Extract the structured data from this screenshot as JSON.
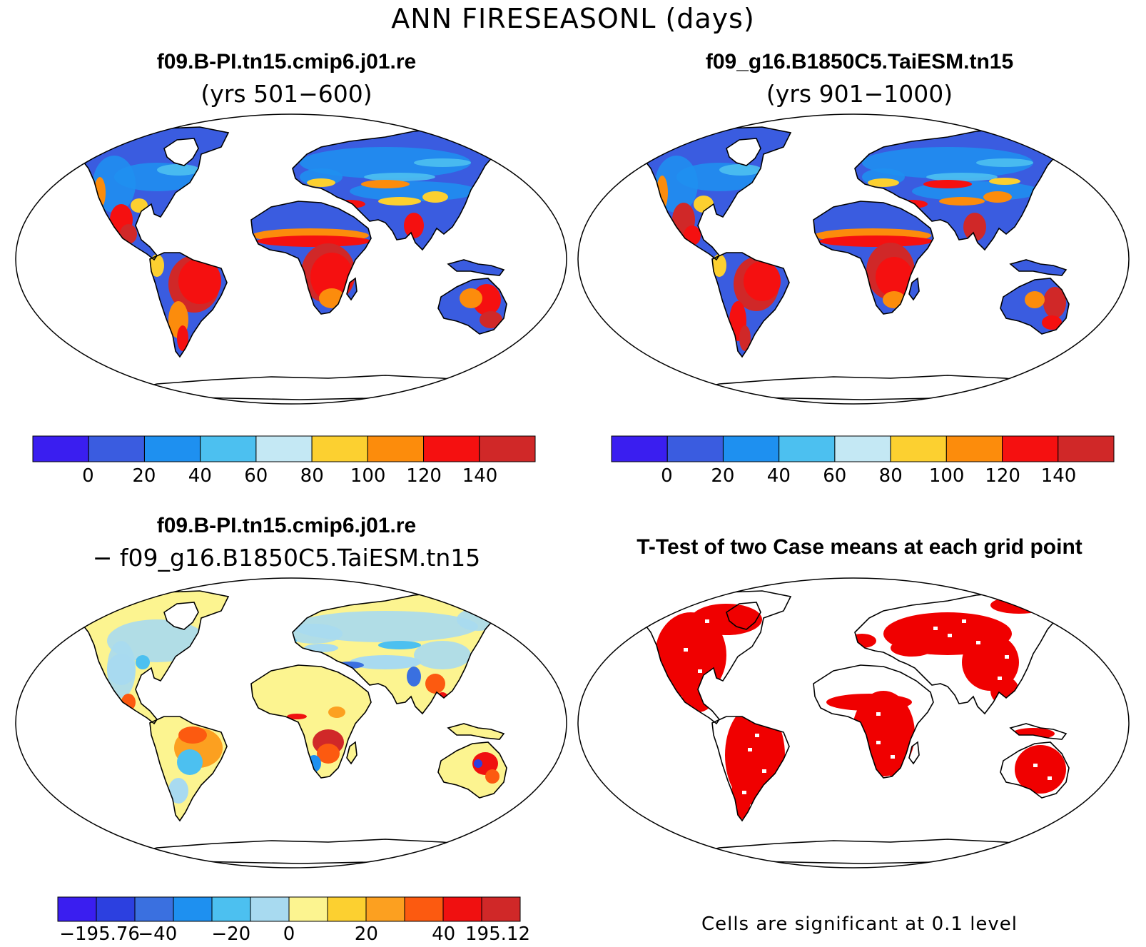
{
  "figure_title": "ANN FIRESEASONL (days)",
  "panels": [
    {
      "title": "f09.B-PI.tn15.cmip6.j01.re",
      "subtitle": "(yrs 501−600)",
      "kind": "field"
    },
    {
      "title": "f09_g16.B1850C5.TaiESM.tn15",
      "subtitle": "(yrs 901−1000)",
      "kind": "field"
    },
    {
      "title": "f09.B-PI.tn15.cmip6.j01.re",
      "subtitle": "− f09_g16.B1850C5.TaiESM.tn15",
      "kind": "difference"
    },
    {
      "title": "T-Test of two Case means at each grid point",
      "subtitle": "",
      "kind": "significance"
    }
  ],
  "colorbar_abs": {
    "colors": [
      "#3a1ef0",
      "#3a5ce0",
      "#1e90f0",
      "#4cc0f0",
      "#c4e8f4",
      "#fcd030",
      "#fc8c0c",
      "#f51010",
      "#d02828"
    ],
    "labels": [
      "0",
      "20",
      "40",
      "60",
      "80",
      "100",
      "120",
      "140"
    ]
  },
  "colorbar_diff": {
    "colors": [
      "#3a1ef0",
      "#2c40e0",
      "#3a70e0",
      "#1e90f0",
      "#4cc0f0",
      "#a8daf0",
      "#fcf490",
      "#fcd030",
      "#fca020",
      "#fc5a10",
      "#f01010",
      "#d02828"
    ],
    "labels": [
      "−195.76",
      "−40",
      "−20",
      "0",
      "20",
      "40",
      "195.12"
    ]
  },
  "significance_note": "Cells are significant at 0.1 level",
  "map_colors": {
    "background_ocean": "#ffffff",
    "coast": "#000000",
    "sig_fill": "#f00000"
  }
}
